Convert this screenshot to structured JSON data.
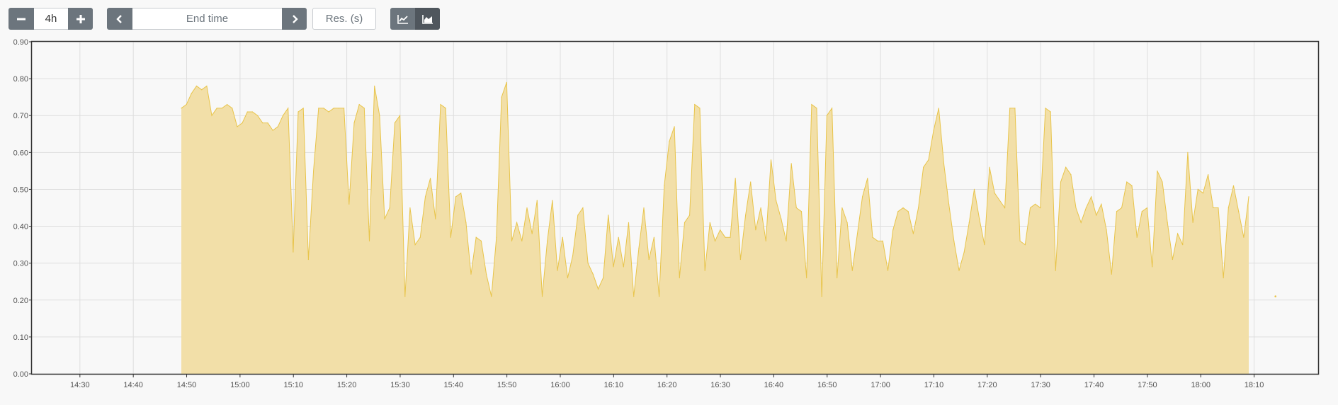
{
  "toolbar": {
    "range_value": "4h",
    "end_time_placeholder": "End time",
    "resolution_placeholder": "Res. (s)",
    "icons": {
      "decrease": "minus-icon",
      "increase": "plus-icon",
      "previous": "chevron-left-icon",
      "next": "chevron-right-icon",
      "line_mode": "line-chart-icon",
      "stacked_mode": "area-chart-icon"
    }
  },
  "colors": {
    "button_dark": "#6c757d",
    "button_active": "#4f565d",
    "series_fill": "#f2dfa8",
    "series_line": "#e8c44a",
    "grid": "#dedede",
    "plot_border": "#333333"
  },
  "chart_data": {
    "type": "area",
    "title": "",
    "xlabel": "",
    "ylabel": "",
    "grid": true,
    "legend": "none",
    "ylim": [
      0,
      0.9
    ],
    "xlim": [
      "14:21",
      "18:22"
    ],
    "x_ticks": [
      "14:30",
      "14:40",
      "14:50",
      "15:00",
      "15:10",
      "15:20",
      "15:30",
      "15:40",
      "15:50",
      "16:00",
      "16:10",
      "16:20",
      "16:30",
      "16:40",
      "16:50",
      "17:00",
      "17:10",
      "17:20",
      "17:30",
      "17:40",
      "17:50",
      "18:00",
      "18:10"
    ],
    "y_ticks": [
      "0.00",
      "0.10",
      "0.20",
      "0.30",
      "0.40",
      "0.50",
      "0.60",
      "0.70",
      "0.80",
      "0.90"
    ],
    "series": [
      {
        "x_start": "14:49",
        "x_end": "18:09",
        "values": [
          0.72,
          0.73,
          0.76,
          0.78,
          0.77,
          0.78,
          0.7,
          0.72,
          0.72,
          0.73,
          0.72,
          0.67,
          0.68,
          0.71,
          0.71,
          0.7,
          0.68,
          0.68,
          0.66,
          0.67,
          0.7,
          0.72,
          0.33,
          0.71,
          0.72,
          0.31,
          0.55,
          0.72,
          0.72,
          0.71,
          0.72,
          0.72,
          0.72,
          0.46,
          0.68,
          0.73,
          0.72,
          0.36,
          0.78,
          0.7,
          0.42,
          0.45,
          0.68,
          0.7,
          0.21,
          0.45,
          0.35,
          0.37,
          0.48,
          0.53,
          0.42,
          0.73,
          0.72,
          0.37,
          0.48,
          0.49,
          0.41,
          0.27,
          0.37,
          0.36,
          0.27,
          0.21,
          0.37,
          0.75,
          0.79,
          0.36,
          0.41,
          0.36,
          0.45,
          0.38,
          0.47,
          0.21,
          0.36,
          0.47,
          0.28,
          0.37,
          0.26,
          0.32,
          0.43,
          0.45,
          0.3,
          0.27,
          0.23,
          0.26,
          0.43,
          0.29,
          0.37,
          0.29,
          0.41,
          0.21,
          0.34,
          0.45,
          0.31,
          0.37,
          0.21,
          0.51,
          0.63,
          0.67,
          0.26,
          0.41,
          0.43,
          0.73,
          0.72,
          0.28,
          0.41,
          0.36,
          0.39,
          0.37,
          0.37,
          0.53,
          0.31,
          0.43,
          0.52,
          0.39,
          0.45,
          0.36,
          0.58,
          0.47,
          0.42,
          0.36,
          0.57,
          0.45,
          0.44,
          0.26,
          0.73,
          0.72,
          0.21,
          0.7,
          0.72,
          0.26,
          0.45,
          0.41,
          0.28,
          0.38,
          0.48,
          0.53,
          0.37,
          0.36,
          0.36,
          0.28,
          0.39,
          0.44,
          0.45,
          0.44,
          0.38,
          0.45,
          0.56,
          0.58,
          0.66,
          0.72,
          0.57,
          0.46,
          0.36,
          0.28,
          0.33,
          0.41,
          0.5,
          0.42,
          0.35,
          0.56,
          0.49,
          0.47,
          0.45,
          0.72,
          0.72,
          0.36,
          0.35,
          0.45,
          0.46,
          0.45,
          0.72,
          0.71,
          0.28,
          0.52,
          0.56,
          0.54,
          0.45,
          0.41,
          0.45,
          0.48,
          0.43,
          0.46,
          0.39,
          0.27,
          0.44,
          0.45,
          0.52,
          0.51,
          0.37,
          0.44,
          0.45,
          0.29,
          0.55,
          0.52,
          0.41,
          0.31,
          0.38,
          0.35,
          0.6,
          0.41,
          0.5,
          0.49,
          0.54,
          0.45,
          0.45,
          0.26,
          0.45,
          0.51,
          0.44,
          0.37,
          0.48
        ]
      }
    ],
    "isolated_points": [
      {
        "x": "18:14",
        "y": 0.21
      }
    ]
  }
}
